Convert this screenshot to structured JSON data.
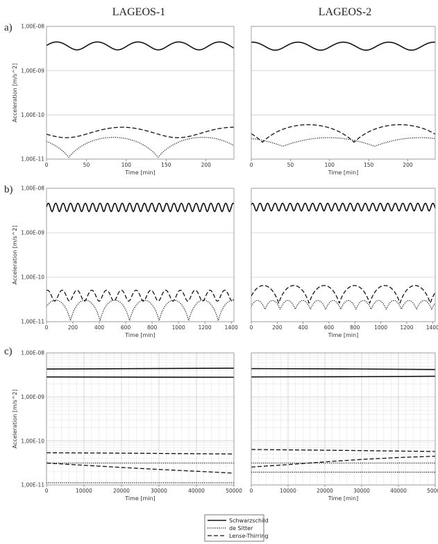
{
  "column_titles": [
    "LAGEOS-1",
    "LAGEOS-2"
  ],
  "panel_labels": [
    "a)",
    "b)",
    "c)"
  ],
  "legend": {
    "entries": [
      {
        "label": "Schwarzschild",
        "style": "solid"
      },
      {
        "label": "de Sitter",
        "style": "dotted"
      },
      {
        "label": "Lense-Thirring",
        "style": "dashed"
      }
    ]
  },
  "chart_data": [
    {
      "id": "a1",
      "type": "line",
      "row": 0,
      "col": 0,
      "xlabel": "Time [min]",
      "ylabel": "Acceleration [m/s^2]",
      "xlim": [
        0,
        235
      ],
      "xticks": [
        "0",
        "50",
        "100",
        "150",
        "200"
      ],
      "xtick_values": [
        0,
        50,
        100,
        150,
        200
      ],
      "ylim": [
        1e-11,
        1e-08
      ],
      "yscale": "log",
      "yticks": [
        "1,00E-08",
        "1,00E-09",
        "1,00E-10",
        "1,00E-11"
      ],
      "grid": "major",
      "series": [
        {
          "style": "solid",
          "gen": "sin",
          "mean": 3.7e-09,
          "amp": 7.5e-10,
          "period": 51,
          "phase": 0
        },
        {
          "style": "dashed",
          "gen": "sin",
          "mean": 4.15e-11,
          "amp": 1.1e-11,
          "period": 140,
          "phase": 3.6
        },
        {
          "style": "dotted",
          "gen": "abssin",
          "base": 1.1e-11,
          "amp": 2e-11,
          "period": 112,
          "phase": 5.5
        }
      ]
    },
    {
      "id": "a2",
      "type": "line",
      "row": 0,
      "col": 1,
      "xlabel": "Time [min]",
      "ylabel": "",
      "xlim": [
        0,
        235
      ],
      "xticks": [
        "0",
        "50",
        "100",
        "150",
        "200"
      ],
      "xtick_values": [
        0,
        50,
        100,
        150,
        200
      ],
      "ylim": [
        1e-11,
        1e-08
      ],
      "yscale": "log",
      "yticks": [],
      "grid": "major",
      "series": [
        {
          "style": "solid",
          "gen": "sin",
          "mean": 3.65e-09,
          "amp": 7.5e-10,
          "period": 58,
          "phase": 1.4
        },
        {
          "style": "dashed",
          "gen": "abssin",
          "base": 2.4e-11,
          "amp": 3.6e-11,
          "period": 117,
          "phase": 5.9
        },
        {
          "style": "dotted",
          "gen": "abssin",
          "base": 1.95e-11,
          "amp": 1.1e-11,
          "period": 117,
          "phase": 5.2
        }
      ]
    },
    {
      "id": "b1",
      "type": "line",
      "row": 1,
      "col": 0,
      "xlabel": "Time [min]",
      "ylabel": "Acceleration [m/s^2]",
      "xlim": [
        0,
        1420
      ],
      "xticks": [
        "0",
        "200",
        "400",
        "600",
        "800",
        "1000",
        "1200",
        "1400"
      ],
      "xtick_values": [
        0,
        200,
        400,
        600,
        800,
        1000,
        1200,
        1400
      ],
      "ylim": [
        1e-11,
        1e-08
      ],
      "yscale": "log",
      "yticks": [
        "1,00E-08",
        "1,00E-09",
        "1,00E-10",
        "1,00E-11"
      ],
      "grid": "major",
      "series": [
        {
          "style": "solid",
          "gen": "sin",
          "mean": 3.8e-09,
          "amp": 8e-10,
          "period": 56,
          "phase": 0
        },
        {
          "style": "dashed",
          "gen": "sin",
          "mean": 4e-11,
          "amp": 1.1e-11,
          "period": 112,
          "phase": 1.2
        },
        {
          "style": "dotted",
          "gen": "abssin",
          "base": 1.05e-11,
          "amp": 2e-11,
          "period": 224,
          "phase": 0.6
        }
      ]
    },
    {
      "id": "b2",
      "type": "line",
      "row": 1,
      "col": 1,
      "xlabel": "Time [min]",
      "ylabel": "",
      "xlim": [
        0,
        1420
      ],
      "xticks": [
        "0",
        "200",
        "400",
        "600",
        "800",
        "1000",
        "1200",
        "1400"
      ],
      "xtick_values": [
        0,
        200,
        400,
        600,
        800,
        1000,
        1200,
        1400
      ],
      "ylim": [
        1e-11,
        1e-08
      ],
      "yscale": "log",
      "yticks": [],
      "grid": "major",
      "series": [
        {
          "style": "solid",
          "gen": "sin",
          "mean": 3.85e-09,
          "amp": 7.5e-10,
          "period": 58,
          "phase": 0.5
        },
        {
          "style": "dashed",
          "gen": "abssin",
          "base": 2.6e-11,
          "amp": 3.9e-11,
          "period": 234,
          "phase": 0.3
        },
        {
          "style": "dotted",
          "gen": "abssin",
          "base": 1.9e-11,
          "amp": 1.1e-11,
          "period": 117,
          "phase": 0.3
        }
      ]
    },
    {
      "id": "c1",
      "type": "line",
      "row": 2,
      "col": 0,
      "xlabel": "Time [min]",
      "ylabel": "Acceleration [m/s^2]",
      "xlim": [
        0,
        50000
      ],
      "xticks": [
        "0",
        "10000",
        "20000",
        "30000",
        "40000",
        "50000"
      ],
      "xtick_values": [
        0,
        10000,
        20000,
        30000,
        40000,
        50000
      ],
      "ylim": [
        1e-11,
        1e-08
      ],
      "yscale": "log",
      "yticks": [
        "1,00E-08",
        "1,00E-09",
        "1,00E-10",
        "1,00E-11"
      ],
      "grid": "minor",
      "series": [
        {
          "style": "solid",
          "gen": "points",
          "x": [
            0,
            25000,
            50000
          ],
          "y": [
            4.3e-09,
            4.4e-09,
            4.5e-09
          ]
        },
        {
          "style": "solid",
          "gen": "points",
          "x": [
            0,
            25000,
            50000
          ],
          "y": [
            2.85e-09,
            2.82e-09,
            2.8e-09
          ]
        },
        {
          "style": "dashed",
          "gen": "points",
          "x": [
            0,
            25000,
            50000
          ],
          "y": [
            5.4e-11,
            5.25e-11,
            5.05e-11
          ]
        },
        {
          "style": "dashed",
          "gen": "points",
          "x": [
            0,
            10000,
            20000,
            30000,
            40000,
            50000
          ],
          "y": [
            3.15e-11,
            2.8e-11,
            2.5e-11,
            2.25e-11,
            2.05e-11,
            1.85e-11
          ]
        },
        {
          "style": "dotted",
          "gen": "points",
          "x": [
            0,
            50000
          ],
          "y": [
            3.15e-11,
            3.15e-11
          ]
        },
        {
          "style": "dotted",
          "gen": "points",
          "x": [
            0,
            50000
          ],
          "y": [
            1.12e-11,
            1.12e-11
          ]
        }
      ]
    },
    {
      "id": "c2",
      "type": "line",
      "row": 2,
      "col": 1,
      "xlabel": "Time [min]",
      "ylabel": "",
      "xlim": [
        0,
        50000
      ],
      "xticks": [
        "0",
        "10000",
        "20000",
        "30000",
        "40000",
        "50000"
      ],
      "xtick_values": [
        0,
        10000,
        20000,
        30000,
        40000,
        50000
      ],
      "ylim": [
        1e-11,
        1e-08
      ],
      "yscale": "log",
      "yticks": [],
      "grid": "minor",
      "series": [
        {
          "style": "solid",
          "gen": "points",
          "x": [
            0,
            25000,
            50000
          ],
          "y": [
            4.4e-09,
            4.35e-09,
            4.2e-09
          ]
        },
        {
          "style": "solid",
          "gen": "points",
          "x": [
            0,
            25000,
            50000
          ],
          "y": [
            2.85e-09,
            2.87e-09,
            2.95e-09
          ]
        },
        {
          "style": "dashed",
          "gen": "points",
          "x": [
            0,
            25000,
            50000
          ],
          "y": [
            6.4e-11,
            6.1e-11,
            5.75e-11
          ]
        },
        {
          "style": "dashed",
          "gen": "points",
          "x": [
            0,
            10000,
            20000,
            30000,
            40000,
            50000
          ],
          "y": [
            2.55e-11,
            2.9e-11,
            3.35e-11,
            3.8e-11,
            4.2e-11,
            4.5e-11
          ]
        },
        {
          "style": "dotted",
          "gen": "points",
          "x": [
            0,
            50000
          ],
          "y": [
            3.15e-11,
            3.15e-11
          ]
        },
        {
          "style": "dotted",
          "gen": "points",
          "x": [
            0,
            50000
          ],
          "y": [
            1.95e-11,
            1.95e-11
          ]
        }
      ]
    }
  ]
}
